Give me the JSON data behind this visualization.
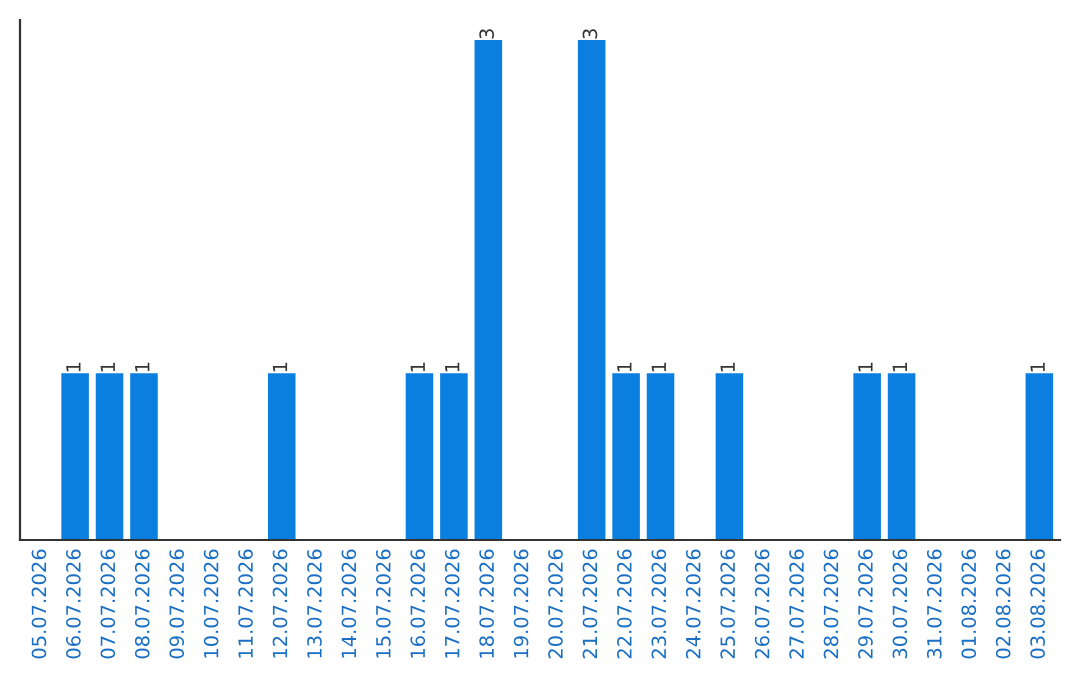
{
  "chart_data": {
    "type": "bar",
    "categories": [
      "05.07.2026",
      "06.07.2026",
      "07.07.2026",
      "08.07.2026",
      "09.07.2026",
      "10.07.2026",
      "11.07.2026",
      "12.07.2026",
      "13.07.2026",
      "14.07.2026",
      "15.07.2026",
      "16.07.2026",
      "17.07.2026",
      "18.07.2026",
      "19.07.2026",
      "20.07.2026",
      "21.07.2026",
      "22.07.2026",
      "23.07.2026",
      "24.07.2026",
      "25.07.2026",
      "26.07.2026",
      "27.07.2026",
      "28.07.2026",
      "29.07.2026",
      "30.07.2026",
      "31.07.2026",
      "01.08.2026",
      "02.08.2026",
      "03.08.2026"
    ],
    "values": [
      0,
      1,
      1,
      1,
      0,
      0,
      0,
      1,
      0,
      0,
      0,
      1,
      1,
      3,
      0,
      0,
      3,
      1,
      1,
      0,
      1,
      0,
      0,
      0,
      1,
      1,
      0,
      0,
      0,
      1
    ],
    "value_labels": [
      null,
      "1",
      "1",
      "1",
      null,
      null,
      null,
      "1",
      null,
      null,
      null,
      "1",
      "1",
      "3",
      null,
      null,
      "3",
      "1",
      "1",
      null,
      "1",
      null,
      null,
      null,
      "1",
      "1",
      null,
      null,
      null,
      "1"
    ],
    "color": "#0a7fe0",
    "ylim": [
      0,
      3.12
    ],
    "grid": false,
    "legend": false
  }
}
